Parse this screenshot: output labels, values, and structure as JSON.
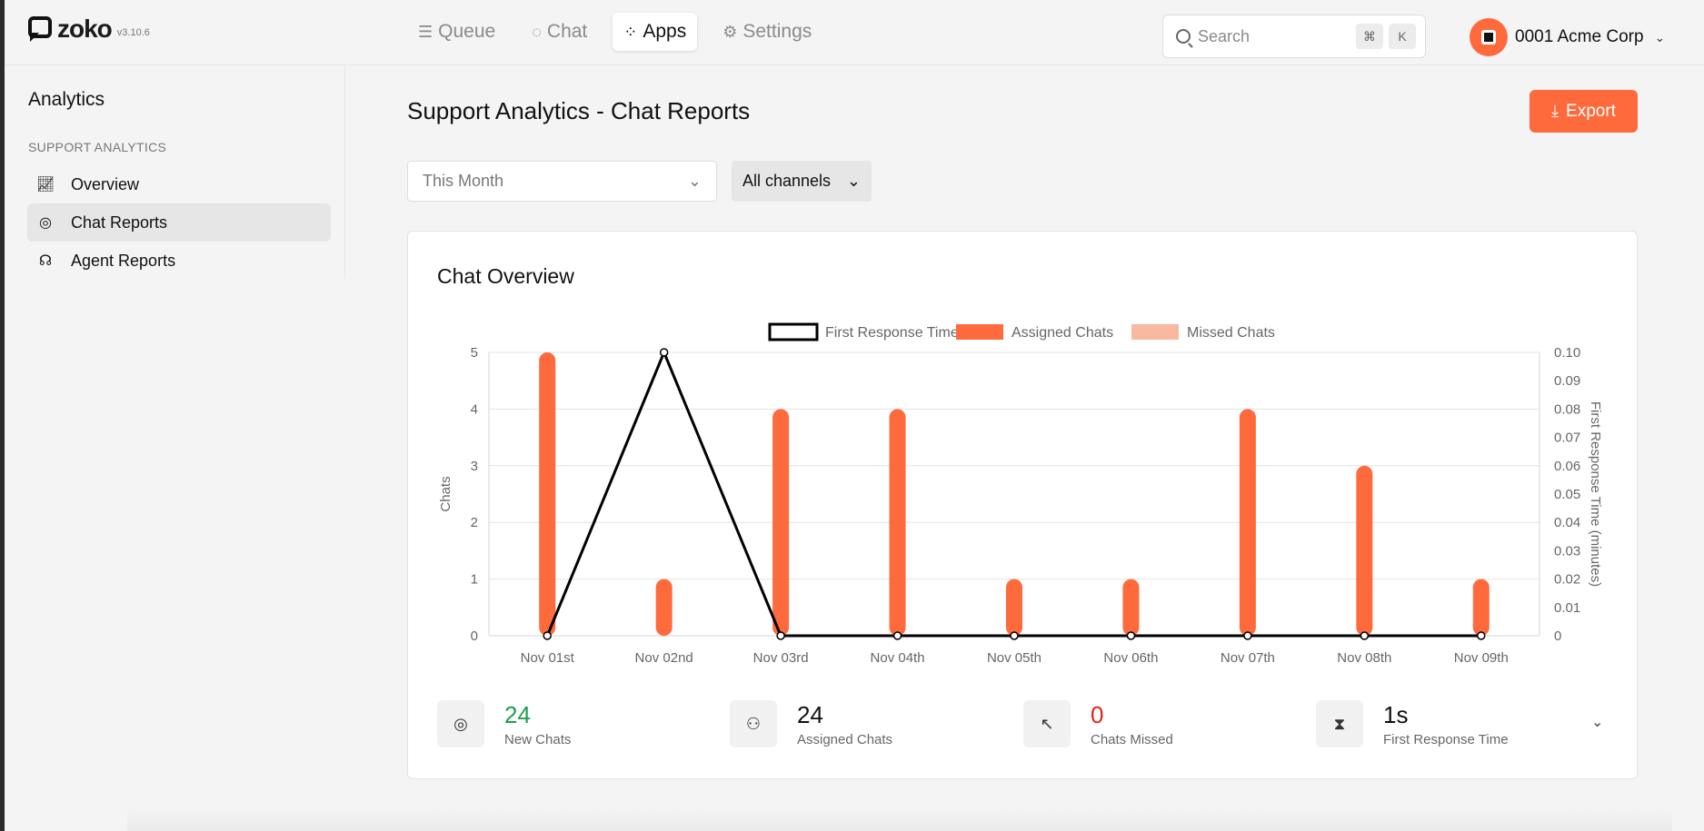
{
  "app": {
    "logo_text": "zoko",
    "version": "v3.10.6"
  },
  "nav": {
    "items": [
      {
        "label": "Queue",
        "icon": "queue-icon"
      },
      {
        "label": "Chat",
        "icon": "chat-icon"
      },
      {
        "label": "Apps",
        "icon": "apps-icon",
        "active": true
      },
      {
        "label": "Settings",
        "icon": "gear-icon"
      }
    ]
  },
  "search": {
    "placeholder": "Search",
    "shortcut_1": "⌘",
    "shortcut_2": "K"
  },
  "account": {
    "name": "0001 Acme Corp"
  },
  "sidebar": {
    "title": "Analytics",
    "section": "SUPPORT ANALYTICS",
    "items": [
      {
        "label": "Overview",
        "icon": "chart-line-icon"
      },
      {
        "label": "Chat Reports",
        "icon": "chat-icon",
        "active": true
      },
      {
        "label": "Agent Reports",
        "icon": "agent-icon"
      }
    ]
  },
  "main": {
    "title": "Support Analytics - Chat Reports",
    "export_label": "Export",
    "filters": {
      "period": "This Month",
      "channel": "All channels"
    }
  },
  "card": {
    "title": "Chat Overview"
  },
  "chart_data": {
    "type": "bar",
    "categories": [
      "Nov 01st",
      "Nov 02nd",
      "Nov 03rd",
      "Nov 04th",
      "Nov 05th",
      "Nov 06th",
      "Nov 07th",
      "Nov 08th",
      "Nov 09th"
    ],
    "series": [
      {
        "name": "Assigned Chats",
        "type": "bar",
        "axis": "left",
        "color": "#ff6a3d",
        "values": [
          5,
          1,
          4,
          4,
          1,
          1,
          4,
          3,
          1
        ]
      },
      {
        "name": "Missed Chats",
        "type": "bar",
        "axis": "left",
        "color": "#f9b9a1",
        "values": [
          0,
          0,
          0,
          0,
          0,
          0,
          0,
          0,
          0
        ]
      },
      {
        "name": "First Response Time",
        "type": "line",
        "axis": "right",
        "color": "#000000",
        "values": [
          0,
          0.1,
          0,
          0,
          0,
          0,
          0,
          0,
          0
        ]
      }
    ],
    "ylabel": "Chats",
    "y2label": "First Response Time (minutes)",
    "ylim": [
      0,
      5
    ],
    "y2lim": [
      0,
      0.1
    ],
    "yticks": [
      "0",
      "1",
      "2",
      "3",
      "4",
      "5"
    ],
    "y2ticks": [
      "0",
      "0.01",
      "0.02",
      "0.03",
      "0.04",
      "0.05",
      "0.06",
      "0.07",
      "0.08",
      "0.09",
      "0.10"
    ],
    "legend_position": "top-center",
    "grid": true
  },
  "stats": [
    {
      "value": "24",
      "label": "New Chats",
      "icon": "chat-icon",
      "color": "#1e9e4c"
    },
    {
      "value": "24",
      "label": "Assigned Chats",
      "icon": "assign-icon",
      "color": "#111111"
    },
    {
      "value": "0",
      "label": "Chats Missed",
      "icon": "missed-icon",
      "color": "#e0251b"
    },
    {
      "value": "1s",
      "label": "First Response Time",
      "icon": "hourglass-icon",
      "color": "#111111"
    }
  ]
}
